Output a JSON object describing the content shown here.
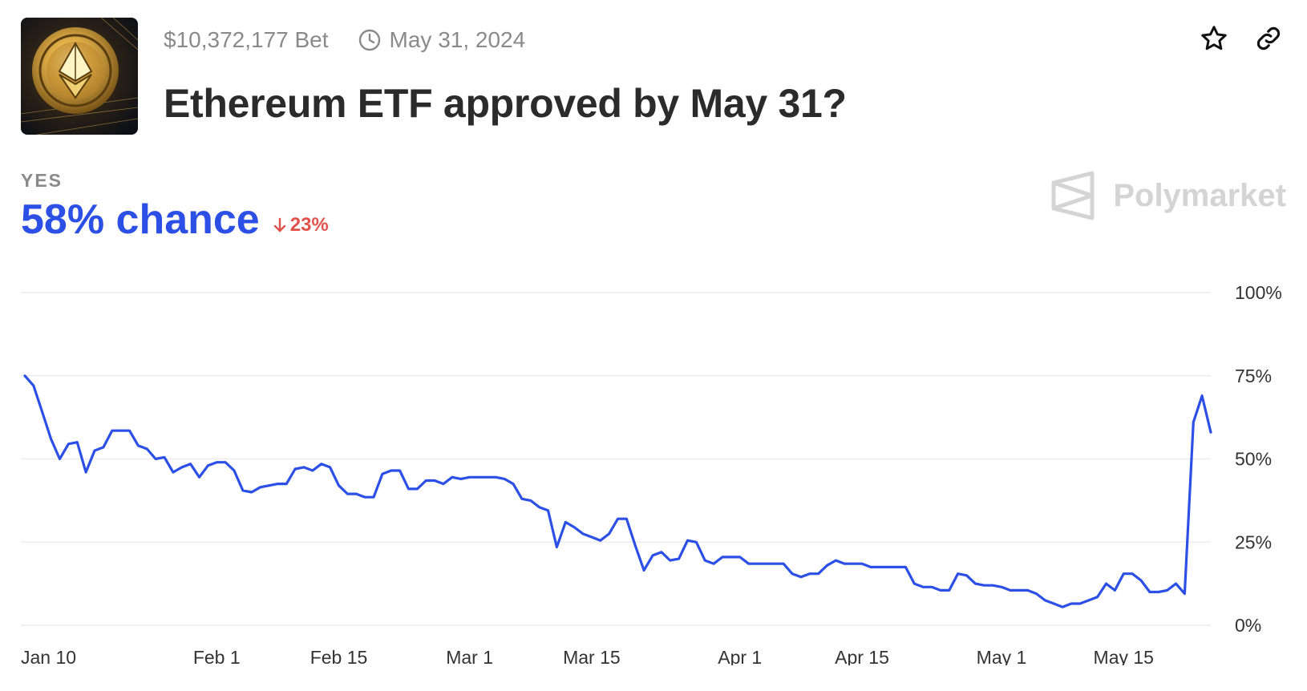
{
  "header": {
    "volume": "$10,372,177 Bet",
    "end_date": "May 31, 2024",
    "title": "Ethereum ETF approved by May 31?",
    "thumbnail_icon": "ethereum-coin-image",
    "star_icon": "star-icon",
    "link_icon": "link-icon"
  },
  "summary": {
    "outcome": "YES",
    "chance": "58% chance",
    "change": "23%",
    "change_direction": "down",
    "brand": "Polymarket"
  },
  "colors": {
    "line": "#2c50e6",
    "chance": "#2c50e6",
    "change_down": "#e0524a",
    "grid": "#ececec"
  },
  "chart_data": {
    "type": "line",
    "title": "",
    "xlabel": "",
    "ylabel": "",
    "ylim": [
      0,
      100
    ],
    "x_tick_labels": [
      "Jan 10",
      "Feb 1",
      "Feb 15",
      "Mar 1",
      "Mar 15",
      "Apr 1",
      "Apr 15",
      "May 1",
      "May 15"
    ],
    "x_tick_dates": [
      "2024-01-10",
      "2024-02-01",
      "2024-02-15",
      "2024-03-01",
      "2024-03-15",
      "2024-04-01",
      "2024-04-15",
      "2024-05-01",
      "2024-05-15"
    ],
    "y_tick_labels": [
      "100%",
      "75%",
      "50%",
      "25%",
      "0%"
    ],
    "y_ticks": [
      100,
      75,
      50,
      25,
      0
    ],
    "grid": true,
    "series": [
      {
        "points": [
          [
            "2024-01-10",
            75
          ],
          [
            "2024-01-11",
            72
          ],
          [
            "2024-01-12",
            64
          ],
          [
            "2024-01-13",
            56
          ],
          [
            "2024-01-14",
            50
          ],
          [
            "2024-01-15",
            54.5
          ],
          [
            "2024-01-16",
            55
          ],
          [
            "2024-01-17",
            46
          ],
          [
            "2024-01-18",
            52.5
          ],
          [
            "2024-01-19",
            53.5
          ],
          [
            "2024-01-20",
            58.5
          ],
          [
            "2024-01-21",
            58.5
          ],
          [
            "2024-01-22",
            58.5
          ],
          [
            "2024-01-23",
            54
          ],
          [
            "2024-01-24",
            53
          ],
          [
            "2024-01-25",
            50
          ],
          [
            "2024-01-26",
            50.5
          ],
          [
            "2024-01-27",
            46
          ],
          [
            "2024-01-28",
            47.5
          ],
          [
            "2024-01-29",
            48.5
          ],
          [
            "2024-01-30",
            44.5
          ],
          [
            "2024-01-31",
            48
          ],
          [
            "2024-02-01",
            49
          ],
          [
            "2024-02-02",
            49
          ],
          [
            "2024-02-03",
            46.5
          ],
          [
            "2024-02-04",
            40.5
          ],
          [
            "2024-02-05",
            40
          ],
          [
            "2024-02-06",
            41.5
          ],
          [
            "2024-02-07",
            42
          ],
          [
            "2024-02-08",
            42.5
          ],
          [
            "2024-02-09",
            42.5
          ],
          [
            "2024-02-10",
            47
          ],
          [
            "2024-02-11",
            47.5
          ],
          [
            "2024-02-12",
            46.5
          ],
          [
            "2024-02-13",
            48.5
          ],
          [
            "2024-02-14",
            47.5
          ],
          [
            "2024-02-15",
            42
          ],
          [
            "2024-02-16",
            39.5
          ],
          [
            "2024-02-17",
            39.5
          ],
          [
            "2024-02-18",
            38.5
          ],
          [
            "2024-02-19",
            38.5
          ],
          [
            "2024-02-20",
            45.5
          ],
          [
            "2024-02-21",
            46.5
          ],
          [
            "2024-02-22",
            46.5
          ],
          [
            "2024-02-23",
            41
          ],
          [
            "2024-02-24",
            41
          ],
          [
            "2024-02-25",
            43.5
          ],
          [
            "2024-02-26",
            43.5
          ],
          [
            "2024-02-27",
            42.5
          ],
          [
            "2024-02-28",
            44.5
          ],
          [
            "2024-02-29",
            44
          ],
          [
            "2024-03-01",
            44.5
          ],
          [
            "2024-03-02",
            44.5
          ],
          [
            "2024-03-03",
            44.5
          ],
          [
            "2024-03-04",
            44.5
          ],
          [
            "2024-03-05",
            44
          ],
          [
            "2024-03-06",
            42.5
          ],
          [
            "2024-03-07",
            38
          ],
          [
            "2024-03-08",
            37.5
          ],
          [
            "2024-03-09",
            35.5
          ],
          [
            "2024-03-10",
            34.5
          ],
          [
            "2024-03-11",
            23.5
          ],
          [
            "2024-03-12",
            31
          ],
          [
            "2024-03-13",
            29.5
          ],
          [
            "2024-03-14",
            27.5
          ],
          [
            "2024-03-15",
            26.5
          ],
          [
            "2024-03-16",
            25.5
          ],
          [
            "2024-03-17",
            27.5
          ],
          [
            "2024-03-18",
            32
          ],
          [
            "2024-03-19",
            32
          ],
          [
            "2024-03-20",
            24
          ],
          [
            "2024-03-21",
            16.5
          ],
          [
            "2024-03-22",
            21
          ],
          [
            "2024-03-23",
            22
          ],
          [
            "2024-03-24",
            19.5
          ],
          [
            "2024-03-25",
            20
          ],
          [
            "2024-03-26",
            25.5
          ],
          [
            "2024-03-27",
            25
          ],
          [
            "2024-03-28",
            19.5
          ],
          [
            "2024-03-29",
            18.5
          ],
          [
            "2024-03-30",
            20.5
          ],
          [
            "2024-03-31",
            20.5
          ],
          [
            "2024-04-01",
            20.5
          ],
          [
            "2024-04-02",
            18.5
          ],
          [
            "2024-04-03",
            18.5
          ],
          [
            "2024-04-04",
            18.5
          ],
          [
            "2024-04-05",
            18.5
          ],
          [
            "2024-04-06",
            18.5
          ],
          [
            "2024-04-07",
            15.5
          ],
          [
            "2024-04-08",
            14.5
          ],
          [
            "2024-04-09",
            15.5
          ],
          [
            "2024-04-10",
            15.5
          ],
          [
            "2024-04-11",
            18
          ],
          [
            "2024-04-12",
            19.5
          ],
          [
            "2024-04-13",
            18.5
          ],
          [
            "2024-04-14",
            18.5
          ],
          [
            "2024-04-15",
            18.5
          ],
          [
            "2024-04-16",
            17.5
          ],
          [
            "2024-04-17",
            17.5
          ],
          [
            "2024-04-18",
            17.5
          ],
          [
            "2024-04-19",
            17.5
          ],
          [
            "2024-04-20",
            17.5
          ],
          [
            "2024-04-21",
            12.5
          ],
          [
            "2024-04-22",
            11.5
          ],
          [
            "2024-04-23",
            11.5
          ],
          [
            "2024-04-24",
            10.5
          ],
          [
            "2024-04-25",
            10.5
          ],
          [
            "2024-04-26",
            15.5
          ],
          [
            "2024-04-27",
            15
          ],
          [
            "2024-04-28",
            12.5
          ],
          [
            "2024-04-29",
            12
          ],
          [
            "2024-04-30",
            12
          ],
          [
            "2024-05-01",
            11.5
          ],
          [
            "2024-05-02",
            10.5
          ],
          [
            "2024-05-03",
            10.5
          ],
          [
            "2024-05-04",
            10.5
          ],
          [
            "2024-05-05",
            9.5
          ],
          [
            "2024-05-06",
            7.5
          ],
          [
            "2024-05-07",
            6.5
          ],
          [
            "2024-05-08",
            5.5
          ],
          [
            "2024-05-09",
            6.5
          ],
          [
            "2024-05-10",
            6.5
          ],
          [
            "2024-05-11",
            7.5
          ],
          [
            "2024-05-12",
            8.5
          ],
          [
            "2024-05-13",
            12.5
          ],
          [
            "2024-05-14",
            10.5
          ],
          [
            "2024-05-15",
            15.5
          ],
          [
            "2024-05-16",
            15.5
          ],
          [
            "2024-05-17",
            13.5
          ],
          [
            "2024-05-18",
            10
          ],
          [
            "2024-05-19",
            10
          ],
          [
            "2024-05-20",
            10.5
          ],
          [
            "2024-05-21",
            12.5
          ],
          [
            "2024-05-22",
            9.5
          ],
          [
            "2024-05-23",
            61
          ],
          [
            "2024-05-24",
            69
          ],
          [
            "2024-05-25",
            58
          ]
        ]
      }
    ]
  }
}
